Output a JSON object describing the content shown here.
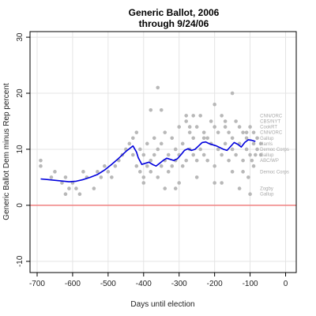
{
  "chart_data": {
    "type": "scatter",
    "title": [
      "Generic Ballot, 2006",
      "through 9/24/06"
    ],
    "xlabel": "Days until election",
    "ylabel": "Generic Ballot Dem minus Rep percent",
    "xlim": [
      -720,
      30
    ],
    "ylim": [
      -12,
      31
    ],
    "xticks": [
      -700,
      -600,
      -500,
      -400,
      -300,
      -200,
      -100,
      0
    ],
    "yticks": [
      -10,
      0,
      10,
      20,
      30
    ],
    "grid": true,
    "zero_line": {
      "y": 0,
      "color": "#f08080"
    },
    "colors": {
      "points": "#b8b8b8",
      "trend": "#0000dd",
      "grid": "#e4e4e4",
      "zero": "#f08080"
    },
    "series": [
      {
        "kind": "points",
        "x": [
          -690,
          -690,
          -660,
          -650,
          -630,
          -620,
          -620,
          -610,
          -600,
          -590,
          -580,
          -570,
          -560,
          -540,
          -530,
          -520,
          -510,
          -500,
          -490,
          -480,
          -470,
          -460,
          -450,
          -440,
          -430,
          -430,
          -420,
          -420,
          -410,
          -410,
          -400,
          -400,
          -390,
          -390,
          -380,
          -380,
          -370,
          -370,
          -360,
          -360,
          -350,
          -350,
          -340,
          -340,
          -330,
          -330,
          -320,
          -320,
          -310,
          -310,
          -300,
          -300,
          -290,
          -290,
          -280,
          -280,
          -270,
          -270,
          -260,
          -260,
          -250,
          -250,
          -240,
          -240,
          -230,
          -230,
          -220,
          -220,
          -210,
          -210,
          -200,
          -200,
          -190,
          -190,
          -180,
          -180,
          -170,
          -170,
          -160,
          -160,
          -150,
          -150,
          -140,
          -140,
          -130,
          -130,
          -120,
          -120,
          -110,
          -110,
          -100,
          -100,
          -90,
          -90,
          -80,
          -80,
          -70,
          -70,
          -360,
          -350,
          -300,
          -280,
          -250,
          -200,
          -150,
          -130,
          -120,
          -100,
          -95,
          -85,
          -90,
          -380,
          -310,
          -260,
          -200,
          -180,
          -150,
          -110,
          -105,
          -400,
          -340,
          -270,
          -230,
          -170
        ],
        "y": [
          8,
          7,
          5,
          6,
          4,
          2,
          5,
          3,
          4,
          3,
          2,
          6,
          5,
          3,
          6,
          5,
          7,
          6,
          5,
          7,
          8,
          9,
          10,
          11,
          9,
          12,
          7,
          13,
          6,
          10,
          5,
          9,
          7,
          11,
          6,
          8,
          9,
          12,
          5,
          10,
          7,
          11,
          8,
          13,
          6,
          9,
          7,
          12,
          8,
          10,
          9,
          14,
          7,
          11,
          8,
          15,
          10,
          13,
          9,
          12,
          8,
          14,
          10,
          16,
          9,
          13,
          8,
          12,
          11,
          15,
          7,
          14,
          10,
          13,
          9,
          16,
          11,
          14,
          8,
          13,
          10,
          12,
          9,
          15,
          11,
          14,
          8,
          13,
          10,
          12,
          9,
          14,
          11,
          13,
          10,
          12,
          9,
          11,
          21,
          17,
          4,
          16,
          5,
          4,
          20,
          3,
          6,
          2,
          8,
          9,
          7,
          17,
          3,
          16,
          18,
          4,
          6,
          13,
          5,
          4,
          3,
          14,
          12,
          15
        ],
        "color": "#b8b8b8"
      },
      {
        "kind": "trend",
        "x": [
          -690,
          -670,
          -640,
          -610,
          -590,
          -570,
          -550,
          -530,
          -510,
          -490,
          -470,
          -450,
          -430,
          -420,
          -415,
          -405,
          -395,
          -385,
          -375,
          -365,
          -355,
          -345,
          -335,
          -325,
          -315,
          -305,
          -295,
          -285,
          -275,
          -265,
          -255,
          -245,
          -235,
          -225,
          -215,
          -205,
          -195,
          -185,
          -175,
          -165,
          -155,
          -145,
          -135,
          -125,
          -115,
          -105,
          -95,
          -85
        ],
        "y": [
          4.7,
          4.6,
          4.4,
          4.2,
          4.3,
          4.6,
          5.0,
          5.5,
          6.3,
          7.3,
          8.4,
          9.6,
          10.6,
          9.5,
          8.5,
          7.3,
          7.5,
          7.7,
          7.3,
          7.0,
          7.5,
          8.0,
          8.4,
          8.2,
          8.0,
          8.3,
          9.0,
          9.8,
          10.1,
          9.8,
          10.0,
          10.6,
          11.2,
          11.3,
          11.0,
          10.8,
          10.6,
          10.3,
          10.0,
          9.8,
          10.5,
          11.2,
          10.9,
          10.4,
          11.2,
          11.7,
          11.6,
          11.4
        ],
        "color": "#0000dd"
      }
    ],
    "annotations": [
      {
        "text": "CNN/ORC",
        "x": -72,
        "y": 16
      },
      {
        "text": "CBS/NYT",
        "x": -72,
        "y": 15
      },
      {
        "text": "CookRT",
        "x": -72,
        "y": 14
      },
      {
        "text": "CNN/ORC",
        "x": -72,
        "y": 13
      },
      {
        "text": "Gallup",
        "x": -72,
        "y": 12
      },
      {
        "text": "Harris",
        "x": -72,
        "y": 11
      },
      {
        "text": "Democ Corps",
        "x": -72,
        "y": 10
      },
      {
        "text": "Gallup",
        "x": -72,
        "y": 9
      },
      {
        "text": "ABC/WP",
        "x": -72,
        "y": 8
      },
      {
        "text": "Democ Corps",
        "x": -72,
        "y": 6
      },
      {
        "text": "Zogby",
        "x": -72,
        "y": 3
      },
      {
        "text": "Gallup",
        "x": -72,
        "y": 2
      }
    ]
  }
}
